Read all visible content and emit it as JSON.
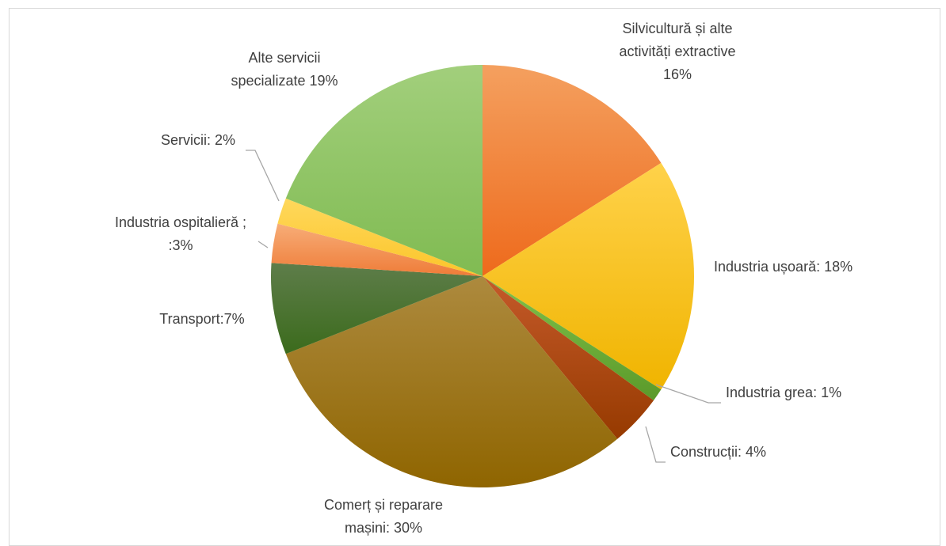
{
  "chart_data": {
    "type": "pie",
    "title": "",
    "slices": [
      {
        "name": "Silvicultură și alte activități extractive",
        "value": 16,
        "label_lines": [
          "Silvicultură și alte",
          "activități extractive",
          "16%"
        ],
        "color_light": "#f4a05f",
        "color_dark": "#ee6a1c"
      },
      {
        "name": "Industria ușoară",
        "value": 18,
        "label_lines": [
          "Industria ușoară: 18%"
        ],
        "color_light": "#ffd24a",
        "color_dark": "#f0b400"
      },
      {
        "name": "Industria grea",
        "value": 1,
        "label_lines": [
          "Industria grea: 1%"
        ],
        "color_light": "#82c14a",
        "color_dark": "#5a9a2a"
      },
      {
        "name": "Construcții",
        "value": 4,
        "label_lines": [
          "Construcții: 4%"
        ],
        "color_light": "#c55a2a",
        "color_dark": "#963a00"
      },
      {
        "name": "Comerț și reparare mașini",
        "value": 30,
        "label_lines": [
          "Comerț și reparare",
          "mașini: 30%"
        ],
        "color_light": "#ad8a3e",
        "color_dark": "#8f6500"
      },
      {
        "name": "Transport",
        "value": 7,
        "label_lines": [
          "Transport:7%"
        ],
        "color_light": "#5e7d4a",
        "color_dark": "#3b6b1c"
      },
      {
        "name": "Industria ospitalieră",
        "value": 3,
        "label_lines": [
          "Industria ospitalieră ;",
          ":3%"
        ],
        "color_light": "#f7ad78",
        "color_dark": "#ef7c38"
      },
      {
        "name": "Servicii",
        "value": 2,
        "label_lines": [
          "Servicii: 2%"
        ],
        "color_light": "#ffd85c",
        "color_dark": "#fbc52a"
      },
      {
        "name": "Alte servicii specializate",
        "value": 19,
        "label_lines": [
          "Alte servicii",
          "specializate 19%"
        ],
        "color_light": "#a2cf7c",
        "color_dark": "#80bb52"
      }
    ],
    "start_angle_deg": 0,
    "direction": "clockwise",
    "legend": "none"
  }
}
